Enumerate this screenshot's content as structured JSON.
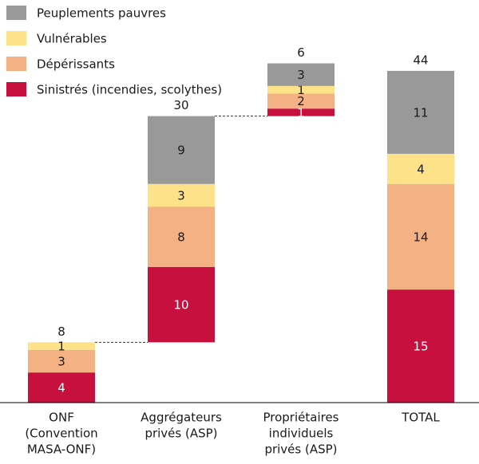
{
  "chart_data": {
    "type": "waterfall",
    "categories": [
      [
        "ONF",
        "(Convention",
        "MASA-ONF)"
      ],
      [
        "Aggrégateurs",
        "privés (ASP)"
      ],
      [
        "Propriétaires",
        "individuels",
        "privés (ASP)"
      ],
      [
        "TOTAL"
      ]
    ],
    "series": [
      {
        "name": "Sinistrés (incendies, scolythes)",
        "color": "#c8103e",
        "values": [
          4,
          10,
          1,
          15
        ]
      },
      {
        "name": "Dépérissants",
        "color": "#f4b183",
        "values": [
          3,
          8,
          2,
          14
        ]
      },
      {
        "name": "Vulnérables",
        "color": "#fde28a",
        "values": [
          1,
          3,
          1,
          4
        ]
      },
      {
        "name": "Peuplements pauvres",
        "color": "#999999",
        "values": [
          null,
          9,
          3,
          11
        ]
      }
    ],
    "totals": [
      8,
      30,
      6,
      44
    ],
    "ylim": [
      0,
      46
    ]
  }
}
